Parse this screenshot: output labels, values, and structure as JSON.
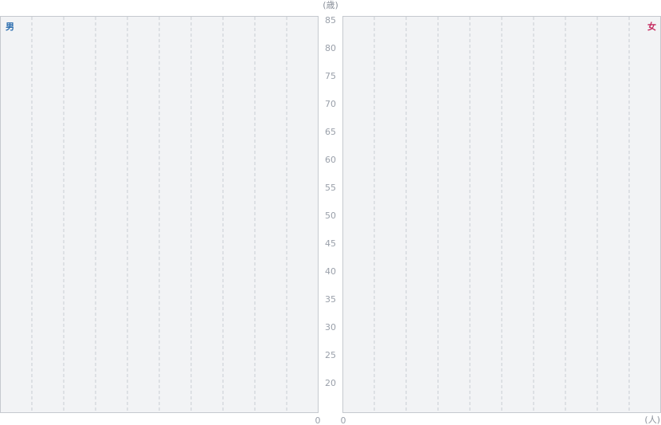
{
  "chart_data": {
    "type": "bar",
    "orientation": "horizontal",
    "age_unit_label": "(歳)",
    "count_unit_label": "(人)",
    "age_ticks": [
      "85",
      "80",
      "75",
      "70",
      "65",
      "60",
      "55",
      "50",
      "45",
      "40",
      "35",
      "30",
      "25",
      "20"
    ],
    "male": {
      "label": "男",
      "x_tick": "0",
      "values": []
    },
    "female": {
      "label": "女",
      "x_tick": "0",
      "values": []
    },
    "colors": {
      "male": "#2e6fb0",
      "female": "#c4285e",
      "panel": "#f2f3f5",
      "grid": "#c8ccd2"
    },
    "grid": true
  }
}
